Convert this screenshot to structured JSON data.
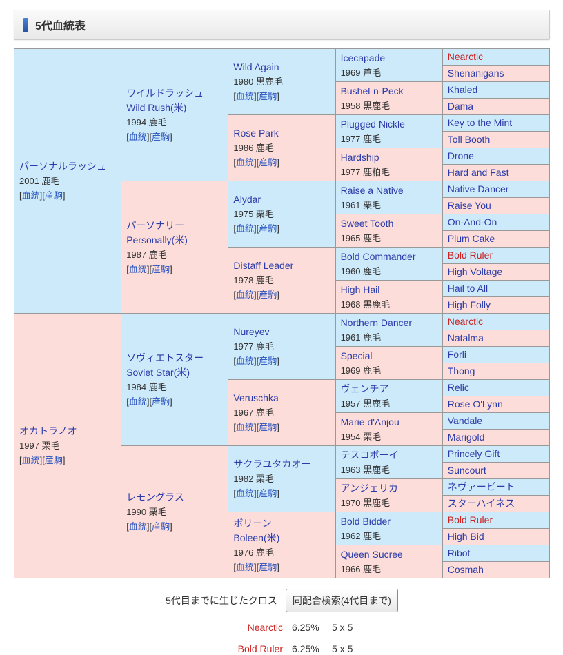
{
  "header": {
    "title": "5代血統表"
  },
  "colors": {
    "sire_bg": "#cdeafa",
    "dam_bg": "#fcddd9",
    "link_blue": "#2b3baa",
    "minor_link_blue": "#2550be",
    "cross_red": "#cc2222"
  },
  "pedigree": {
    "gen1": [
      {
        "name": "パーソナルラッシュ",
        "detail": "2001 鹿毛",
        "links": [
          "血統",
          "産駒"
        ]
      },
      {
        "name": "オカトラノオ",
        "detail": "1997 栗毛",
        "links": [
          "血統",
          "産駒"
        ]
      }
    ],
    "gen2": [
      {
        "name": "ワイルドラッシュ",
        "name2": "Wild Rush(米)",
        "detail": "1994 鹿毛",
        "links": [
          "血統",
          "産駒"
        ]
      },
      {
        "name": "パーソナリー",
        "name2": "Personally(米)",
        "detail": "1987 鹿毛",
        "links": [
          "血統",
          "産駒"
        ]
      },
      {
        "name": "ソヴィエトスター",
        "name2": "Soviet Star(米)",
        "detail": "1984 鹿毛",
        "links": [
          "血統",
          "産駒"
        ]
      },
      {
        "name": "レモングラス",
        "detail": "1990 栗毛",
        "links": [
          "血統",
          "産駒"
        ]
      }
    ],
    "gen3": [
      {
        "name": "Wild Again",
        "detail": "1980 黒鹿毛",
        "links": [
          "血統",
          "産駒"
        ]
      },
      {
        "name": "Rose Park",
        "detail": "1986 鹿毛",
        "links": [
          "血統",
          "産駒"
        ]
      },
      {
        "name": "Alydar",
        "detail": "1975 栗毛",
        "links": [
          "血統",
          "産駒"
        ]
      },
      {
        "name": "Distaff Leader",
        "detail": "1978 鹿毛",
        "links": [
          "血統",
          "産駒"
        ]
      },
      {
        "name": "Nureyev",
        "detail": "1977 鹿毛",
        "links": [
          "血統",
          "産駒"
        ]
      },
      {
        "name": "Veruschka",
        "detail": "1967 鹿毛",
        "links": [
          "血統",
          "産駒"
        ]
      },
      {
        "name": "サクラユタカオー",
        "detail": "1982 栗毛",
        "links": [
          "血統",
          "産駒"
        ]
      },
      {
        "name": "ボリーン",
        "name2": "Boleen(米)",
        "detail": "1976 鹿毛",
        "links": [
          "血統",
          "産駒"
        ]
      }
    ],
    "gen4": [
      {
        "name": "Icecapade",
        "detail": "1969 芦毛"
      },
      {
        "name": "Bushel-n-Peck",
        "detail": "1958 黒鹿毛"
      },
      {
        "name": "Plugged Nickle",
        "detail": "1977 鹿毛"
      },
      {
        "name": "Hardship",
        "detail": "1977 鹿粕毛"
      },
      {
        "name": "Raise a Native",
        "detail": "1961 栗毛"
      },
      {
        "name": "Sweet Tooth",
        "detail": "1965 鹿毛"
      },
      {
        "name": "Bold Commander",
        "detail": "1960 鹿毛"
      },
      {
        "name": "High Hail",
        "detail": "1968 黒鹿毛"
      },
      {
        "name": "Northern Dancer",
        "detail": "1961 鹿毛"
      },
      {
        "name": "Special",
        "detail": "1969 鹿毛"
      },
      {
        "name": "ヴェンチア",
        "detail": "1957 黒鹿毛"
      },
      {
        "name": "Marie d'Anjou",
        "detail": "1954 栗毛"
      },
      {
        "name": "テスコボーイ",
        "detail": "1963 黒鹿毛"
      },
      {
        "name": "アンジェリカ",
        "detail": "1970 黒鹿毛"
      },
      {
        "name": "Bold Bidder",
        "detail": "1962 鹿毛"
      },
      {
        "name": "Queen Sucree",
        "detail": "1966 鹿毛"
      }
    ],
    "gen5": [
      {
        "name": "Nearctic",
        "red": true
      },
      {
        "name": "Shenanigans"
      },
      {
        "name": "Khaled"
      },
      {
        "name": "Dama"
      },
      {
        "name": "Key to the Mint"
      },
      {
        "name": "Toll Booth"
      },
      {
        "name": "Drone"
      },
      {
        "name": "Hard and Fast"
      },
      {
        "name": "Native Dancer"
      },
      {
        "name": "Raise You"
      },
      {
        "name": "On-And-On"
      },
      {
        "name": "Plum Cake"
      },
      {
        "name": "Bold Ruler",
        "red": true
      },
      {
        "name": "High Voltage"
      },
      {
        "name": "Hail to All"
      },
      {
        "name": "High Folly"
      },
      {
        "name": "Nearctic",
        "red": true
      },
      {
        "name": "Natalma"
      },
      {
        "name": "Forli"
      },
      {
        "name": "Thong"
      },
      {
        "name": "Relic"
      },
      {
        "name": "Rose O'Lynn"
      },
      {
        "name": "Vandale"
      },
      {
        "name": "Marigold"
      },
      {
        "name": "Princely Gift"
      },
      {
        "name": "Suncourt"
      },
      {
        "name": "ネヴァービート"
      },
      {
        "name": "スターハイネス"
      },
      {
        "name": "Bold Ruler",
        "red": true
      },
      {
        "name": "High Bid"
      },
      {
        "name": "Ribot"
      },
      {
        "name": "Cosmah"
      }
    ]
  },
  "footer": {
    "cross_label": "5代目までに生じたクロス",
    "search_button": "同配合検索(4代目まで)",
    "crosses": [
      {
        "name": "Nearctic",
        "percent": "6.25%",
        "pattern": "5 x 5"
      },
      {
        "name": "Bold Ruler",
        "percent": "6.25%",
        "pattern": "5 x 5"
      }
    ]
  }
}
